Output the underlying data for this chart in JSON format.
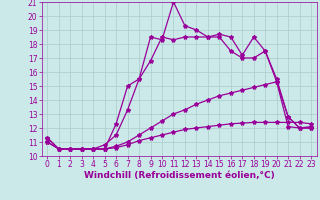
{
  "xlabel": "Windchill (Refroidissement éolien,°C)",
  "xlim": [
    -0.5,
    23.5
  ],
  "ylim": [
    10,
    21
  ],
  "xticks": [
    0,
    1,
    2,
    3,
    4,
    5,
    6,
    7,
    8,
    9,
    10,
    11,
    12,
    13,
    14,
    15,
    16,
    17,
    18,
    19,
    20,
    21,
    22,
    23
  ],
  "yticks": [
    10,
    11,
    12,
    13,
    14,
    15,
    16,
    17,
    18,
    19,
    20,
    21
  ],
  "background_color": "#cce9e9",
  "line_color": "#990099",
  "grid_color": "#aacccc",
  "lines": [
    {
      "x": [
        0,
        1,
        2,
        3,
        4,
        5,
        6,
        7,
        8,
        9,
        10,
        11,
        12,
        13,
        14,
        15,
        16,
        17,
        18,
        19,
        20,
        21,
        22,
        23
      ],
      "y": [
        11.3,
        10.5,
        10.5,
        10.5,
        10.5,
        10.5,
        12.3,
        15.0,
        15.5,
        18.5,
        18.3,
        21.0,
        19.3,
        19.0,
        18.5,
        18.7,
        18.5,
        17.2,
        18.5,
        17.5,
        15.3,
        12.1,
        12.0,
        12.1
      ]
    },
    {
      "x": [
        0,
        1,
        2,
        3,
        4,
        5,
        6,
        7,
        8,
        9,
        10,
        11,
        12,
        13,
        14,
        15,
        16,
        17,
        18,
        19,
        20,
        21,
        22,
        23
      ],
      "y": [
        11.3,
        10.5,
        10.5,
        10.5,
        10.5,
        10.8,
        11.5,
        13.3,
        15.5,
        16.8,
        18.5,
        18.3,
        18.5,
        18.5,
        18.5,
        18.5,
        17.5,
        17.0,
        17.0,
        17.5,
        15.5,
        12.8,
        12.0,
        12.0
      ]
    },
    {
      "x": [
        0,
        1,
        2,
        3,
        4,
        5,
        6,
        7,
        8,
        9,
        10,
        11,
        12,
        13,
        14,
        15,
        16,
        17,
        18,
        19,
        20,
        21,
        22,
        23
      ],
      "y": [
        11.0,
        10.5,
        10.5,
        10.5,
        10.5,
        10.5,
        10.7,
        11.0,
        11.5,
        12.0,
        12.5,
        13.0,
        13.3,
        13.7,
        14.0,
        14.3,
        14.5,
        14.7,
        14.9,
        15.1,
        15.3,
        12.8,
        12.0,
        12.0
      ]
    },
    {
      "x": [
        0,
        1,
        2,
        3,
        4,
        5,
        6,
        7,
        8,
        9,
        10,
        11,
        12,
        13,
        14,
        15,
        16,
        17,
        18,
        19,
        20,
        21,
        22,
        23
      ],
      "y": [
        11.0,
        10.5,
        10.5,
        10.5,
        10.5,
        10.5,
        10.6,
        10.8,
        11.1,
        11.3,
        11.5,
        11.7,
        11.9,
        12.0,
        12.1,
        12.2,
        12.3,
        12.35,
        12.4,
        12.4,
        12.4,
        12.4,
        12.4,
        12.3
      ]
    }
  ],
  "marker": "*",
  "markersize": 3,
  "linewidth": 0.9,
  "tick_fontsize": 5.5,
  "label_fontsize": 6.5
}
